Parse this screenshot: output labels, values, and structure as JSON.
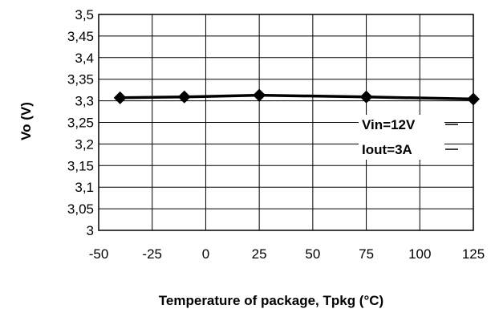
{
  "chart_data": {
    "type": "line",
    "xlabel": "Temperature of package, Tpkg (°C)",
    "ylabel": "Vo (V)",
    "xlim": [
      -50,
      125
    ],
    "ylim": [
      3,
      3.5
    ],
    "x_ticks": [
      "-50",
      "-25",
      "0",
      "25",
      "50",
      "75",
      "100",
      "125"
    ],
    "y_ticks": [
      "3",
      "3,05",
      "3,1",
      "3,15",
      "3,2",
      "3,25",
      "3,3",
      "3,35",
      "3,4",
      "3,45",
      "3,5"
    ],
    "grid": true,
    "series": [
      {
        "x": [
          -40,
          -10,
          25,
          75,
          125
        ],
        "y": [
          3.307,
          3.309,
          3.313,
          3.309,
          3.304
        ],
        "color": "#000000",
        "marker": "diamond"
      }
    ],
    "annotations": [
      "Vin=12V",
      "Iout=3A"
    ]
  }
}
